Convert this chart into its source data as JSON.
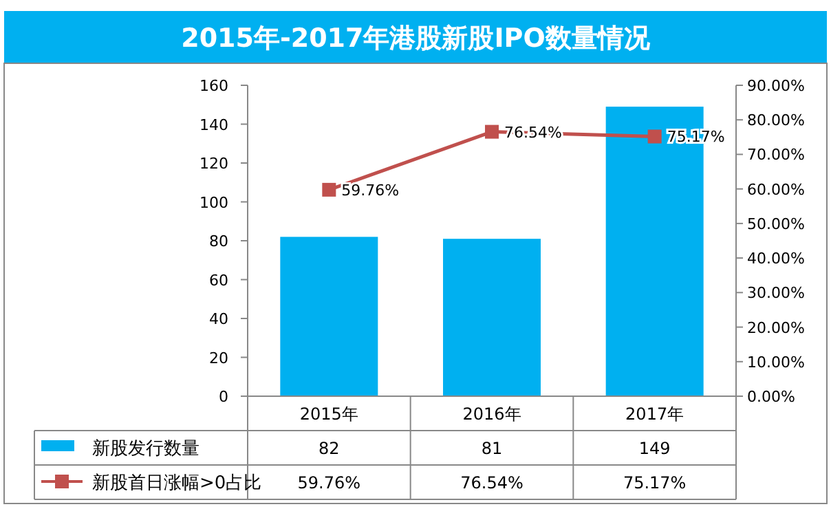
{
  "chart_data": {
    "type": "bar",
    "title": "2015年-2017年港股新股IPO数量情况",
    "categories": [
      "2015年",
      "2016年",
      "2017年"
    ],
    "series": [
      {
        "name": "新股发行数量",
        "color": "#00b0f0",
        "values": [
          82,
          81,
          149
        ],
        "value_labels": [
          "82",
          "81",
          "149"
        ]
      },
      {
        "name": "新股首日涨幅>0占比",
        "type": "line",
        "axis": "y2",
        "color": "#c0504d",
        "marker": "square",
        "values": [
          59.76,
          76.54,
          75.17
        ],
        "value_labels": [
          "59.76%",
          "76.54%",
          "75.17%"
        ]
      }
    ],
    "ylim": [
      0,
      160
    ],
    "yticks": [
      0,
      20,
      40,
      60,
      80,
      100,
      120,
      140,
      160
    ],
    "y2lim": [
      0,
      90
    ],
    "y2ticks": [
      {
        "value": 0,
        "label": "0.00%"
      },
      {
        "value": 10,
        "label": "10.00%"
      },
      {
        "value": 20,
        "label": "20.00%"
      },
      {
        "value": 30,
        "label": "30.00%"
      },
      {
        "value": 40,
        "label": "40.00%"
      },
      {
        "value": 50,
        "label": "50.00%"
      },
      {
        "value": 60,
        "label": "60.00%"
      },
      {
        "value": 70,
        "label": "70.00%"
      },
      {
        "value": 80,
        "label": "80.00%"
      },
      {
        "value": 90,
        "label": "90.00%"
      }
    ],
    "legend": "bottom"
  }
}
